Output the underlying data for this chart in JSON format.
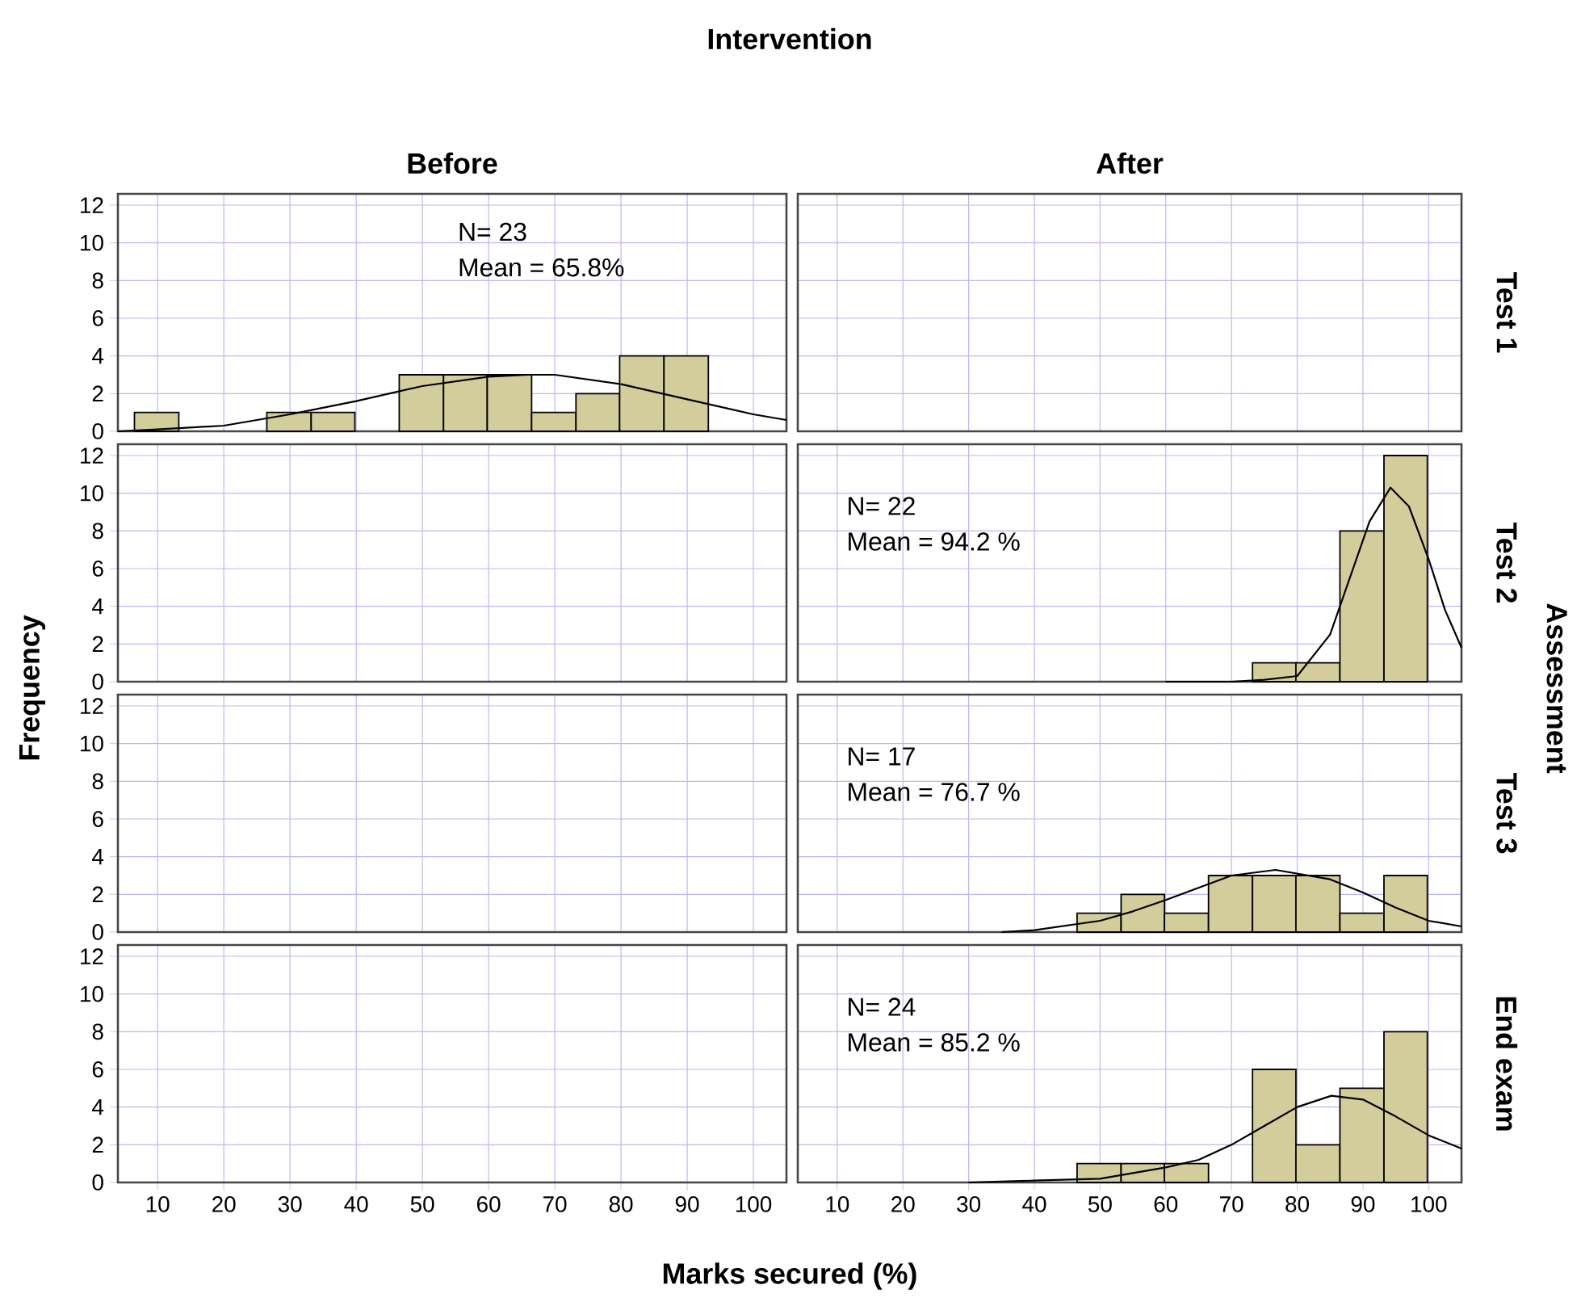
{
  "chart_data": [
    {
      "type": "histogram",
      "title": "Intervention",
      "subtitle": "Before",
      "annotations": [
        "N= 23",
        "Mean = 65.8%"
      ],
      "xlim": [
        4,
        105
      ],
      "ylim": [
        0,
        12.6
      ],
      "xticks": [
        10,
        20,
        30,
        40,
        50,
        60,
        70,
        80,
        90,
        100
      ],
      "yticks": [
        0,
        2,
        4,
        6,
        8,
        10,
        12
      ],
      "grid": true,
      "tick_labels": "y",
      "series": [
        {
          "type": "histogram",
          "color": "#d3cd9b",
          "bins": [
            6.5,
            13.2,
            26.5,
            33.2,
            39.8,
            46.5,
            53.2,
            59.8,
            66.5,
            73.2,
            79.8,
            86.5,
            93.2
          ],
          "values": [
            1,
            0,
            1,
            1,
            0,
            3,
            3,
            3,
            1,
            2,
            4,
            4
          ]
        },
        {
          "type": "line",
          "color": "#000000",
          "x": [
            4,
            10,
            20,
            30,
            40,
            50,
            60,
            66,
            70,
            80,
            90,
            100,
            105
          ],
          "values": [
            0,
            0.1,
            0.3,
            0.9,
            1.6,
            2.4,
            2.9,
            3,
            3,
            2.5,
            1.7,
            0.9,
            0.6
          ]
        }
      ]
    },
    {
      "type": "histogram",
      "subtitle": "After",
      "y2label": "Test 1",
      "annotations": [
        "Assessment"
      ],
      "xlim": [
        4,
        105
      ],
      "ylim": [
        0,
        12.6
      ],
      "xticks": [
        10,
        20,
        30,
        40,
        50,
        60,
        70,
        80,
        90,
        100
      ],
      "yticks": [
        0,
        2,
        4,
        6,
        8,
        10,
        12
      ],
      "grid": true,
      "tick_labels": false
    },
    {
      "type": "histogram",
      "xlim": [
        4,
        105
      ],
      "ylim": [
        0,
        12.6
      ],
      "xticks": [
        10,
        20,
        30,
        40,
        50,
        60,
        70,
        80,
        90,
        100
      ],
      "yticks": [
        0,
        2,
        4,
        6,
        8,
        10,
        12
      ],
      "grid": true,
      "tick_labels": "y"
    },
    {
      "type": "histogram",
      "y2label": "Test 2",
      "annotations": [
        "N= 22",
        "Mean = 94.2 %"
      ],
      "xlim": [
        4,
        105
      ],
      "ylim": [
        0,
        12.6
      ],
      "xticks": [
        10,
        20,
        30,
        40,
        50,
        60,
        70,
        80,
        90,
        100
      ],
      "yticks": [
        0,
        2,
        4,
        6,
        8,
        10,
        12
      ],
      "grid": true,
      "tick_labels": false,
      "series": [
        {
          "type": "histogram",
          "color": "#d3cd9b",
          "bins": [
            73.2,
            79.8,
            86.5,
            93.2,
            99.8
          ],
          "values": [
            1,
            1,
            8,
            12
          ]
        },
        {
          "type": "line",
          "color": "#000000",
          "x": [
            60,
            70,
            75,
            80,
            85,
            88,
            91,
            94.2,
            97,
            100,
            102.5,
            105
          ],
          "values": [
            0,
            0,
            0.1,
            0.3,
            2.5,
            5.5,
            8.5,
            10.3,
            9.3,
            6.5,
            3.8,
            1.8
          ]
        }
      ]
    },
    {
      "type": "histogram",
      "ylabel": "Frequency",
      "xlim": [
        4,
        105
      ],
      "ylim": [
        0,
        12.6
      ],
      "xticks": [
        10,
        20,
        30,
        40,
        50,
        60,
        70,
        80,
        90,
        100
      ],
      "yticks": [
        0,
        2,
        4,
        6,
        8,
        10,
        12
      ],
      "grid": true,
      "tick_labels": "y"
    },
    {
      "type": "histogram",
      "y2label": "Test 3",
      "annotations": [
        "N= 17",
        "Mean = 76.7 %"
      ],
      "xlim": [
        4,
        105
      ],
      "ylim": [
        0,
        12.6
      ],
      "xticks": [
        10,
        20,
        30,
        40,
        50,
        60,
        70,
        80,
        90,
        100
      ],
      "yticks": [
        0,
        2,
        4,
        6,
        8,
        10,
        12
      ],
      "grid": true,
      "tick_labels": false,
      "series": [
        {
          "type": "histogram",
          "color": "#d3cd9b",
          "bins": [
            46.5,
            53.2,
            59.8,
            66.5,
            73.2,
            79.8,
            86.5,
            93.2,
            99.8
          ],
          "values": [
            1,
            2,
            1,
            3,
            3,
            3,
            1,
            3
          ]
        },
        {
          "type": "line",
          "color": "#000000",
          "x": [
            35,
            40,
            50,
            55,
            60,
            70,
            76.7,
            85,
            90,
            95,
            100,
            105
          ],
          "values": [
            0,
            0.1,
            0.6,
            1.1,
            1.7,
            3,
            3.3,
            2.8,
            2.1,
            1.3,
            0.6,
            0.3
          ]
        }
      ]
    },
    {
      "type": "histogram",
      "xlabel": "Marks secured (%)",
      "xlim": [
        4,
        105
      ],
      "ylim": [
        0,
        12.6
      ],
      "xticks": [
        10,
        20,
        30,
        40,
        50,
        60,
        70,
        80,
        90,
        100
      ],
      "yticks": [
        0,
        2,
        4,
        6,
        8,
        10,
        12
      ],
      "grid": true
    },
    {
      "type": "histogram",
      "y2label": "End exam",
      "annotations": [
        "N= 24",
        "Mean = 85.2 %"
      ],
      "xlim": [
        4,
        105
      ],
      "ylim": [
        0,
        12.6
      ],
      "xticks": [
        10,
        20,
        30,
        40,
        50,
        60,
        70,
        80,
        90,
        100
      ],
      "yticks": [
        0,
        2,
        4,
        6,
        8,
        10,
        12
      ],
      "grid": true,
      "tick_labels": "x",
      "series": [
        {
          "type": "histogram",
          "color": "#d3cd9b",
          "bins": [
            46.5,
            53.2,
            59.8,
            66.5,
            73.2,
            79.8,
            86.5,
            93.2,
            99.8
          ],
          "values": [
            1,
            1,
            1,
            0,
            6,
            2,
            5,
            8
          ]
        },
        {
          "type": "line",
          "color": "#000000",
          "x": [
            30,
            40,
            50,
            60,
            65,
            70,
            75,
            80,
            85.2,
            90,
            95,
            100,
            105
          ],
          "values": [
            0,
            0.1,
            0.2,
            0.8,
            1.2,
            2,
            3,
            4,
            4.6,
            4.4,
            3.5,
            2.5,
            1.8
          ]
        }
      ]
    }
  ]
}
